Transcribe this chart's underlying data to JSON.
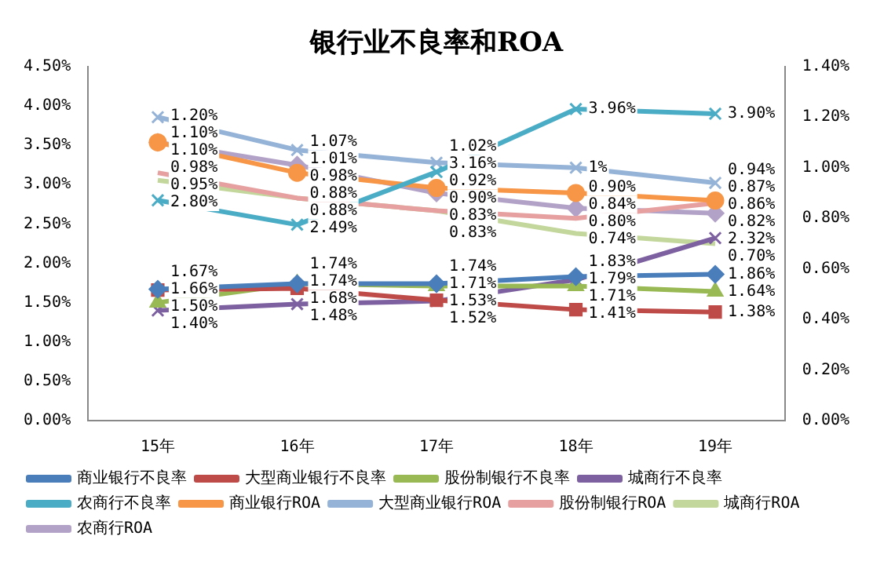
{
  "chart_data": {
    "type": "line",
    "title": "银行业不良率和ROA",
    "categories": [
      "15年",
      "16年",
      "17年",
      "18年",
      "19年"
    ],
    "ylim": [
      0,
      4.5
    ],
    "yticks": [
      {
        "value": 0,
        "label": "0.00%"
      },
      {
        "value": 0.5,
        "label": "0.50%"
      },
      {
        "value": 1,
        "label": "1.00%"
      },
      {
        "value": 1.5,
        "label": "1.50%"
      },
      {
        "value": 2,
        "label": "2.00%"
      },
      {
        "value": 2.5,
        "label": "2.50%"
      },
      {
        "value": 3,
        "label": "3.00%"
      },
      {
        "value": 3.5,
        "label": "3.50%"
      },
      {
        "value": 4,
        "label": "4.00%"
      },
      {
        "value": 4.5,
        "label": "4.50%"
      }
    ],
    "y2lim": [
      0,
      1.4
    ],
    "y2ticks": [
      {
        "value": 0,
        "label": "0.00%"
      },
      {
        "value": 0.2,
        "label": "0.20%"
      },
      {
        "value": 0.4,
        "label": "0.40%"
      },
      {
        "value": 0.6,
        "label": "0.60%"
      },
      {
        "value": 0.8,
        "label": "0.80%"
      },
      {
        "value": 1,
        "label": "1.00%"
      },
      {
        "value": 1.2,
        "label": "1.20%"
      },
      {
        "value": 1.4,
        "label": "1.40%"
      }
    ],
    "grid": false,
    "legend": "bottom",
    "series": [
      {
        "name": "商业银行不良率",
        "color": "#4a7ebb",
        "marker": "diamond",
        "values": [
          1.67,
          1.74,
          1.74,
          1.83,
          1.86
        ],
        "value_labels": [
          "1.67%",
          "1.74%",
          "1.74%",
          "1.83%",
          "1.86%"
        ]
      },
      {
        "name": "大型商业银行不良率",
        "color": "#be4b48",
        "marker": "square",
        "values": [
          1.66,
          1.68,
          1.53,
          1.41,
          1.38
        ],
        "value_labels": [
          "1.66%",
          "1.68%",
          "1.53%",
          "1.41%",
          "1.38%"
        ]
      },
      {
        "name": "股份制银行不良率",
        "color": "#98b954",
        "marker": "triangle",
        "values": [
          1.5,
          1.74,
          1.71,
          1.71,
          1.64
        ],
        "value_labels": [
          "1.50%",
          "1.74%",
          "1.71%",
          "1.71%",
          "1.64%"
        ]
      },
      {
        "name": "城商行不良率",
        "color": "#7d60a0",
        "marker": "cross",
        "values": [
          1.4,
          1.48,
          1.52,
          1.79,
          2.32
        ],
        "value_labels": [
          "1.40%",
          "1.48%",
          "1.52%",
          "1.79%",
          "2.32%"
        ]
      },
      {
        "name": "农商行不良率",
        "color": "#4bacc6",
        "marker": "cross",
        "values": [
          2.8,
          2.49,
          3.16,
          3.96,
          3.9
        ],
        "value_labels": [
          "2.80%",
          "2.49%",
          "3.16%",
          "3.96%",
          "3.90%"
        ]
      },
      {
        "name": "商业银行ROA",
        "color": "#f79646",
        "marker": "circle",
        "axis": "y2",
        "values": [
          1.1,
          0.98,
          0.92,
          0.9,
          0.87
        ],
        "value_labels": [
          "1.10%",
          "0.98%",
          "0.92%",
          "0.90%",
          "0.87%"
        ]
      },
      {
        "name": "大型商业银行ROA",
        "color": "#95b3d7",
        "marker": "cross",
        "axis": "y2",
        "values": [
          1.2,
          1.07,
          1.02,
          1,
          0.94
        ],
        "value_labels": [
          "1.20%",
          "1.07%",
          "1.02%",
          "1%",
          "0.94%"
        ]
      },
      {
        "name": "股份制银行ROA",
        "color": "#e6a0a0",
        "marker": "none",
        "axis": "y2",
        "values": [
          0.98,
          0.88,
          0.83,
          0.8,
          0.86
        ],
        "value_labels": [
          "0.98%",
          "0.88%",
          "0.83%",
          "0.80%",
          "0.86%"
        ]
      },
      {
        "name": "城商行ROA",
        "color": "#c3d69b",
        "marker": "none",
        "axis": "y2",
        "values": [
          0.95,
          0.88,
          0.83,
          0.74,
          0.7
        ],
        "value_labels": [
          "0.95%",
          "0.88%",
          "0.83%",
          "0.74%",
          "0.70%"
        ]
      },
      {
        "name": "农商行ROA",
        "color": "#b3a2c7",
        "marker": "diamond",
        "axis": "y2",
        "values": [
          1.1,
          1.01,
          0.9,
          0.84,
          0.82
        ],
        "value_labels": [
          "1.10%",
          "1.01%",
          "0.90%",
          "0.84%",
          "0.82%"
        ]
      }
    ]
  }
}
